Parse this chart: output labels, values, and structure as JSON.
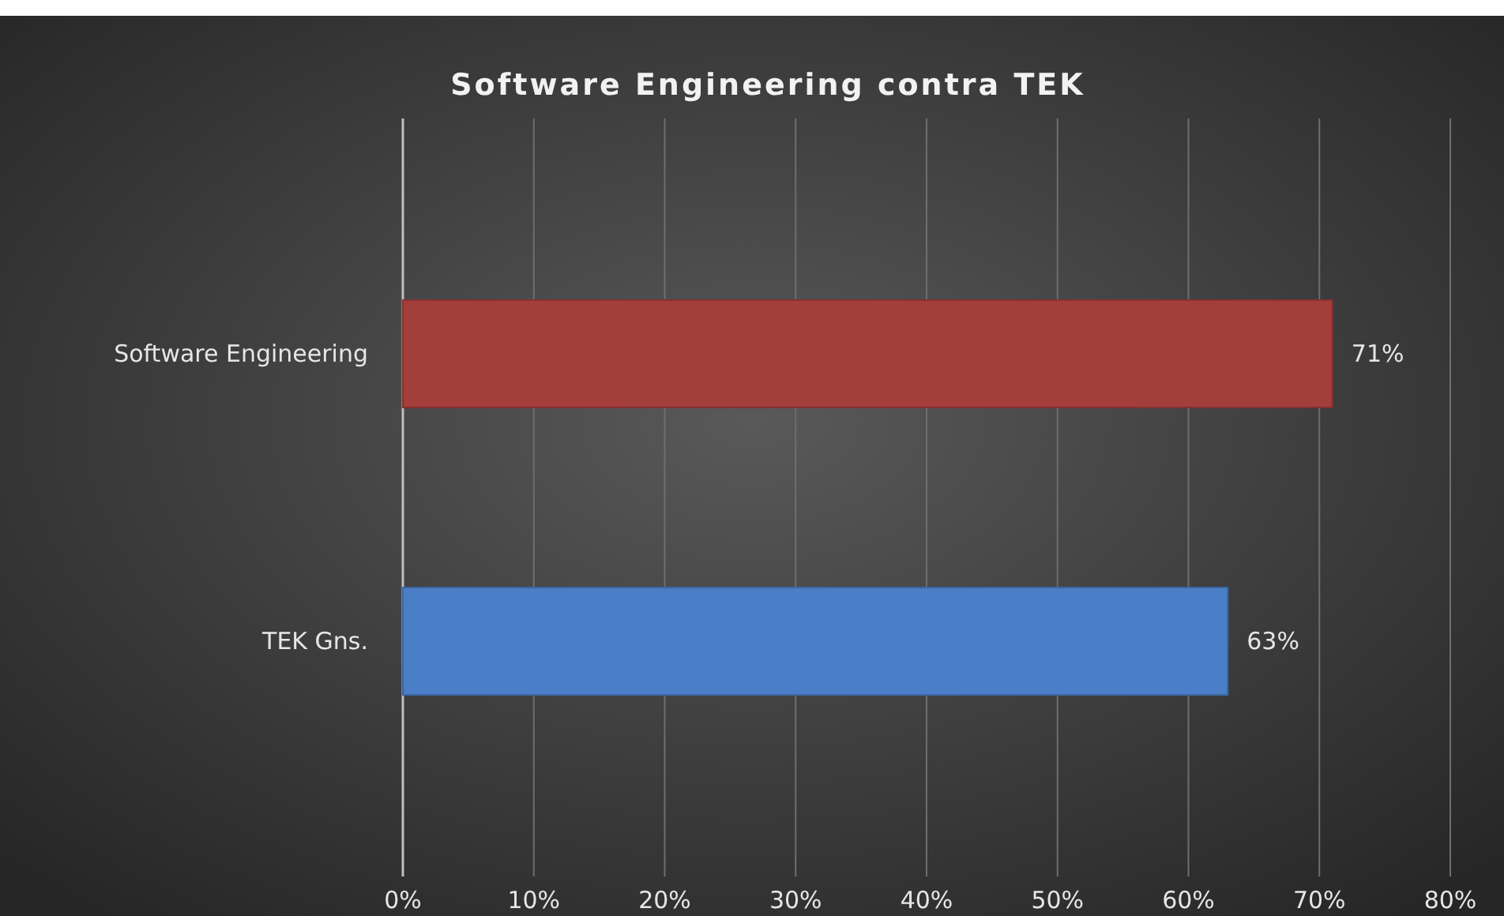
{
  "chart_data": {
    "type": "bar",
    "orientation": "horizontal",
    "title": "Software Engineering contra TEK",
    "categories": [
      "Software Engineering",
      "TEK Gns."
    ],
    "values": [
      71,
      63
    ],
    "colors": [
      "#a33e3b",
      "#4a7ec6"
    ],
    "value_labels": [
      "71%",
      "63%"
    ],
    "xlim": [
      0,
      80
    ],
    "xticks": [
      {
        "value": 0,
        "label": "0%"
      },
      {
        "value": 10,
        "label": "10%"
      },
      {
        "value": 20,
        "label": "20%"
      },
      {
        "value": 30,
        "label": "30%"
      },
      {
        "value": 40,
        "label": "40%"
      },
      {
        "value": 50,
        "label": "50%"
      },
      {
        "value": 60,
        "label": "60%"
      },
      {
        "value": 70,
        "label": "70%"
      },
      {
        "value": 80,
        "label": "80%"
      }
    ],
    "grid": "x"
  }
}
